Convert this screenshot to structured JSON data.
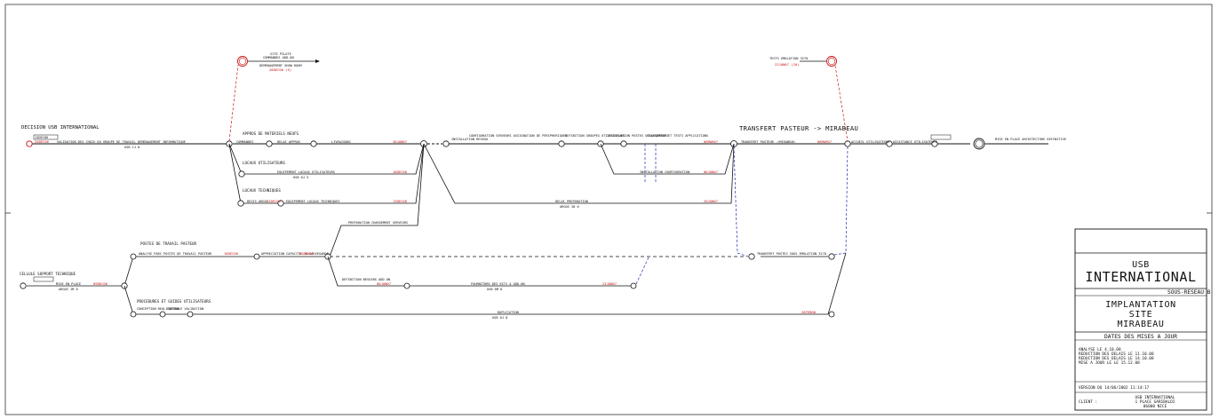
{
  "sections": {
    "decision": "DECISION USB INTERNATIONAL",
    "appros": "APPROS DE MATERIELS NEUFS",
    "locaux_util": "LOCAUX UTILISATEURS",
    "locaux_tech": "LOCAUX TECHNIQUES",
    "transfert": "TRANSFERT PASTEUR -> MIRABEAU",
    "postes": "POSTES DE TRAVAIL PASTEUR",
    "cellule": "CELLULE SUPPORT TECHNIQUE",
    "procedures": "PROCEDURES ET GUIDES UTILISATEURS"
  },
  "top_labels": {
    "site_pilote": [
      "SITE PILOTE",
      "COMMANDES ADD-ON",
      "DEMENAGEMENT SHOW ROOM"
    ],
    "site_pilote_date": "28DEC06  (5)",
    "tests": "TESTS EMULATION 3270",
    "tests_date": "22JAN07  (20)"
  },
  "activities": {
    "validation": "VALIDATION DES CHOIX DU GROUPE DE TRAVAIL DEMENAGEMENT INFORMATIQUE",
    "validation_res": "USB        1J 8",
    "commandes": "COMMANDES",
    "delai_appros": "DELAI APPROS",
    "livraisons": "LIVRAISONS",
    "livraisons_date": "30JAN07",
    "installation_reseau": "INSTALLATION RESEAU",
    "config_serveurs": "CONFIGURATION SERVEURS ASSIGNATION DE PERIPHERIQUES",
    "definition": "DEFINITION GROUPES UTILISATEURS",
    "installation_postes": "INSTALLATION POSTES UTILISATEURS",
    "chargement": "CHARGEMENT ET TESTS APPLICATIONS",
    "chargement_date": "06MAR07",
    "transfert_act": "TRANSFERT PASTEUR ->MIRABEAU",
    "transfert_date": "08MAR07",
    "accueil": "ACCUEIL UTILISATEURS",
    "assistance": "ASSISTANCE UTILISATEURS",
    "mise_place": "MISE EN PLACE ARCHITECTURE DEFINITIVE",
    "equipement_util": "EQUIPEMENT LOCAUX UTILISATEURS",
    "equipement_util_date": "10DEC06",
    "equipement_util_res": "USB        0J 5",
    "installation_config": "INSTALLATION CONFIGURATION",
    "installation_config_date": "06JAN07",
    "devis": "DEVIS ARGOS",
    "devis_date": "13DEC06",
    "equipement_tech": "EQUIPEMENT LOCAUX TECHNIQUES",
    "equipement_tech_date": "13DEC06",
    "delai_prep": "DELAI PREPARATION",
    "delai_prep_date": "20JAN07",
    "delai_prep_res": "ARGOS    30 0",
    "preparation": "PREPARATION CHARGEMENT SERVEURS",
    "analyse_parc": "ANALYSE PARC POSTES DE TRAVAIL PASTEUR",
    "analyse_date": "18DEC06",
    "appreciation": "APPRECIATION CAPACITE DE SAUVEGARDE",
    "appreciation_date": "06JAN07",
    "transfert_bas": "TRANSFERT POSTES SOUS EMULATION 3270",
    "definition_besoins": "DEFINITION BESOINS ADD-ON",
    "definition_besoins_date": "06JAN07",
    "fourniture": "FOURNITURE DES KITS A ADD-ON",
    "fourniture_res": "USB        0M 8",
    "fourniture_date": "23JAN07",
    "mise_en_place": "MISE EN PLACE",
    "mise_en_place_date": "09DEC06",
    "mise_en_place_res": "ARGOS    1M 8",
    "conception": "CONCEPTION REALISATION",
    "controle": "CONTROLE VALIDATION",
    "duplication": "DUPLICATION",
    "duplication_res": "USB        0J 8",
    "duplication_date": "28FEB08",
    "start_date_1": "13DEC06",
    "start_date_2": "20DEC06"
  },
  "title_block": {
    "company": "USB",
    "company2": "INTERNATIONAL",
    "sous_reseau": "SOUS-RESEAU B",
    "title1": "IMPLANTATION",
    "title2": "SITE",
    "title3": "MIRABEAU",
    "dates_header": "DATES DES MISES A JOUR",
    "updates": [
      "ANALYSE          LE  4.10.08",
      "REDUCTION DES DELAIS  LE 11.10.08",
      "REDUCTION DES DELAIS  LE 14.10.08",
      "MISE A JOUR LE    LE 15.12.08"
    ],
    "version": "VERSION DU 14/06/2002 11:14:17",
    "client_label": "CLIENT :",
    "client_lines": [
      "USB INTERNATIONAL",
      "1 PLACE GARIBALDI",
      "06000  NICE"
    ]
  },
  "colors": {
    "line": "#111111",
    "red": "#c81414",
    "blue": "#2030b0"
  }
}
